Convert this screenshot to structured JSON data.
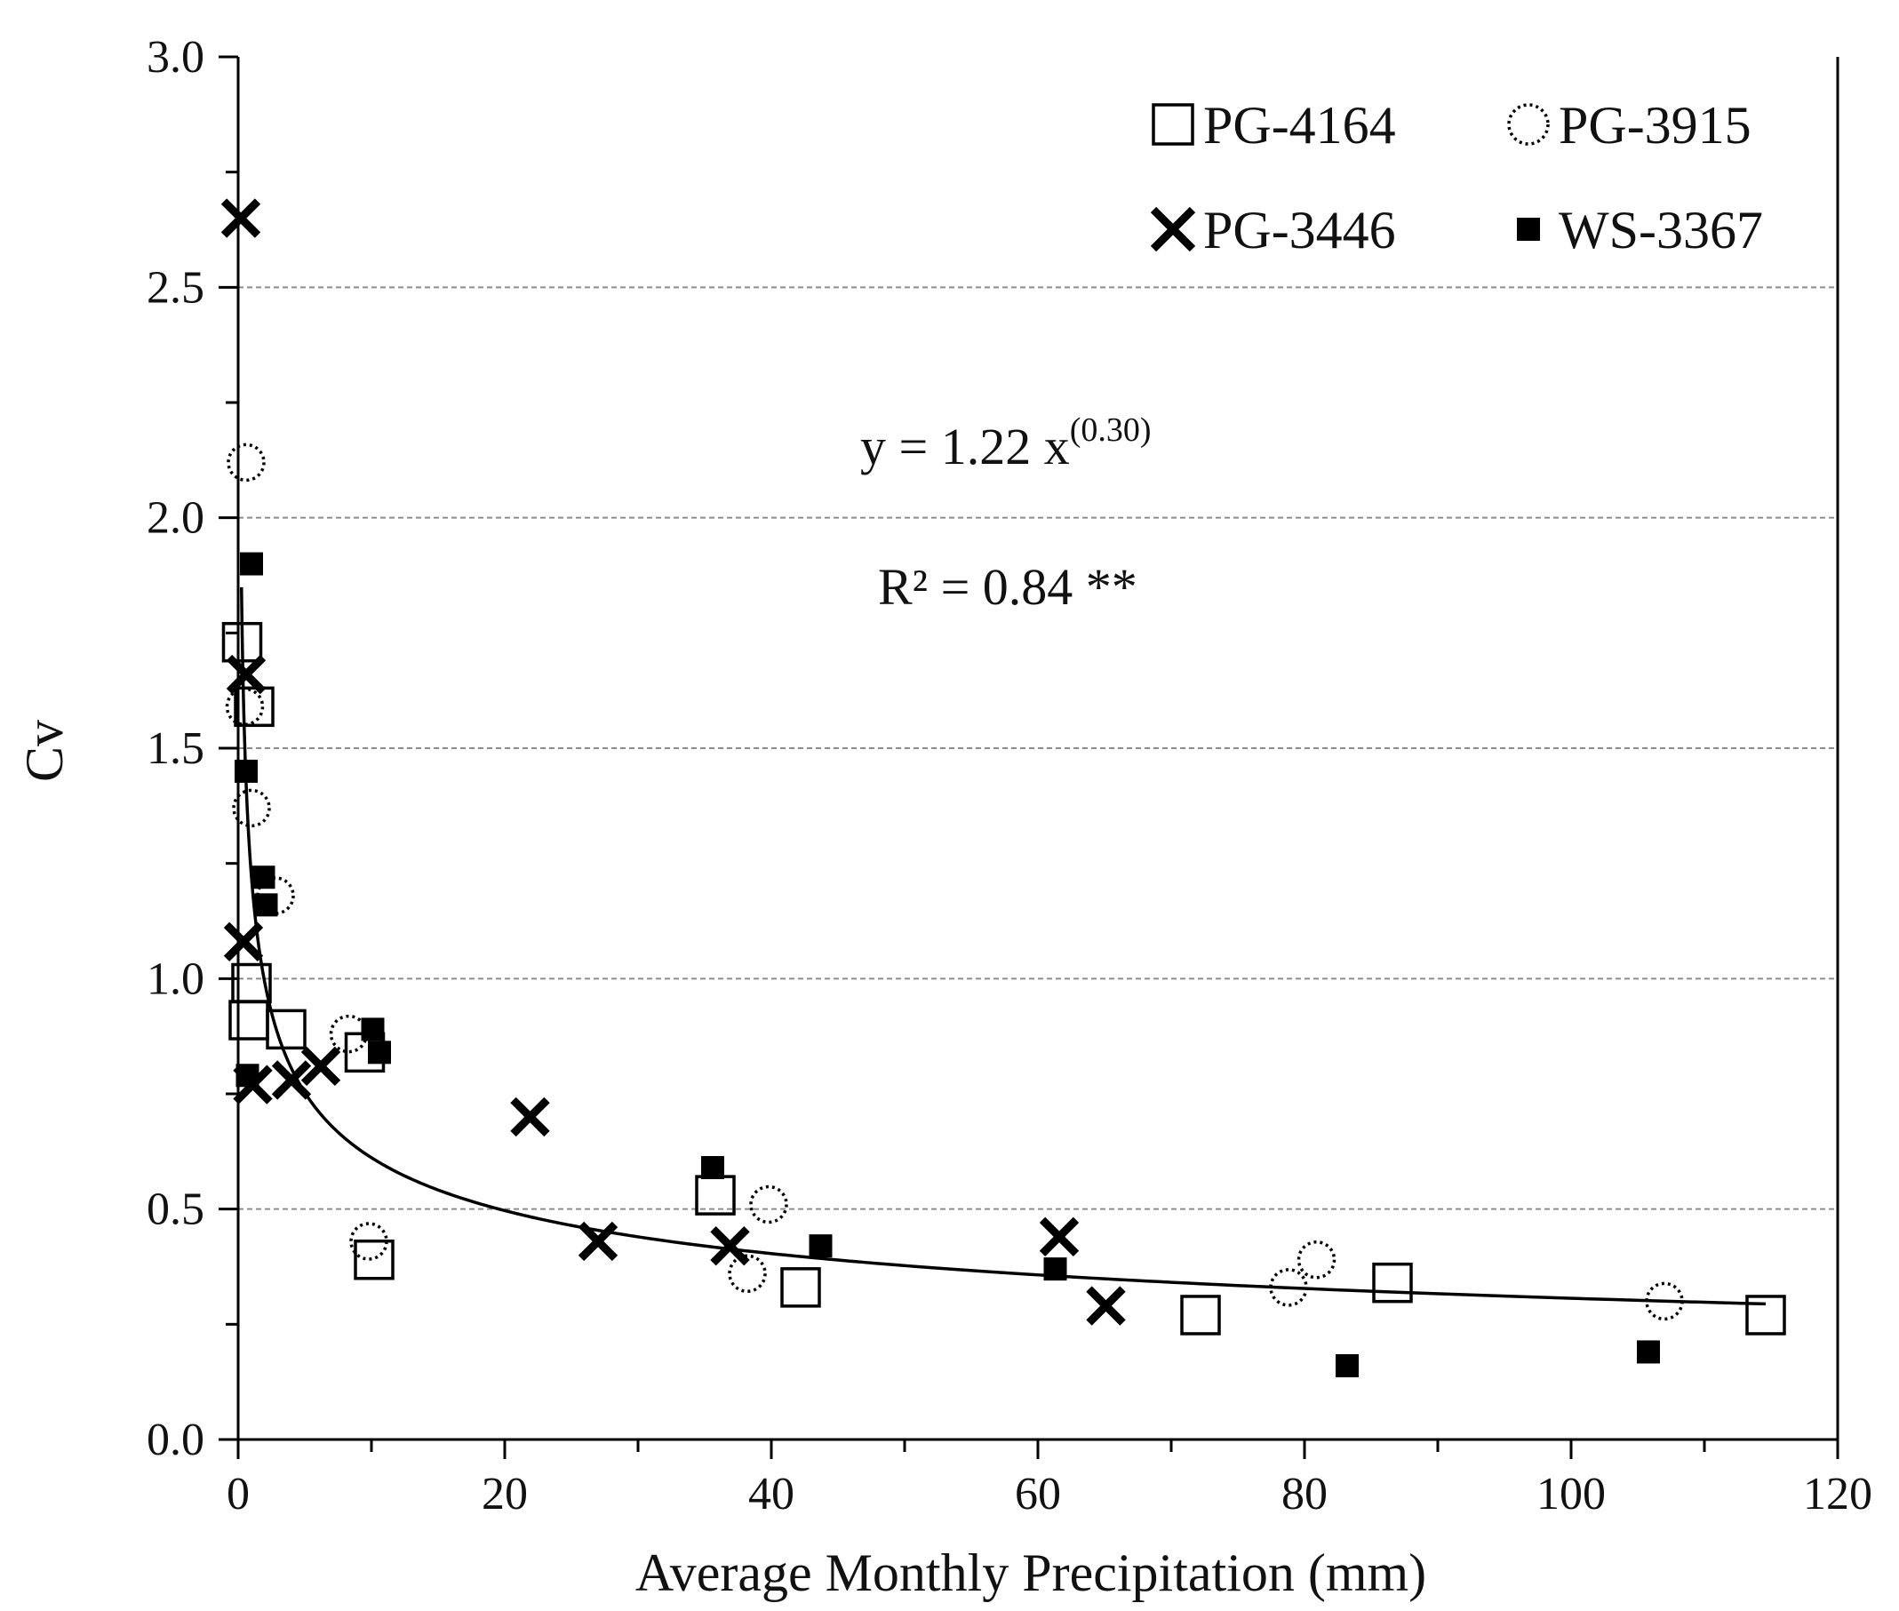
{
  "chart_data": {
    "type": "scatter",
    "title": "",
    "xlabel": "Average Monthly Precipitation (mm)",
    "ylabel": "Cv",
    "xlim": [
      0,
      120
    ],
    "ylim": [
      0,
      3.0
    ],
    "x_ticks": [
      "0",
      "20",
      "40",
      "60",
      "80",
      "100",
      "120"
    ],
    "y_ticks": [
      "0.0",
      "0.5",
      "1.0",
      "1.5",
      "2.0",
      "2.5",
      "3.0"
    ],
    "grid": "horizontal dashed",
    "legend_position": "top-right",
    "series": [
      {
        "name": "PG-4164",
        "marker": "open-square",
        "points": [
          [
            0.3,
            1.73
          ],
          [
            1.2,
            1.59
          ],
          [
            1.0,
            0.99
          ],
          [
            0.8,
            0.91
          ],
          [
            3.6,
            0.89
          ],
          [
            9.5,
            0.84
          ],
          [
            10.2,
            0.39
          ],
          [
            35.8,
            0.53
          ],
          [
            42.2,
            0.33
          ],
          [
            72.2,
            0.27
          ],
          [
            86.6,
            0.34
          ],
          [
            114.6,
            0.27
          ]
        ]
      },
      {
        "name": "PG-3915",
        "marker": "dotted-circle",
        "points": [
          [
            0.6,
            2.12
          ],
          [
            0.5,
            1.59
          ],
          [
            1.0,
            1.37
          ],
          [
            2.8,
            1.18
          ],
          [
            8.3,
            0.88
          ],
          [
            9.8,
            0.43
          ],
          [
            39.8,
            0.51
          ],
          [
            38.2,
            0.36
          ],
          [
            78.8,
            0.33
          ],
          [
            80.9,
            0.39
          ],
          [
            107.0,
            0.3
          ]
        ]
      },
      {
        "name": "PG-3446",
        "marker": "x",
        "points": [
          [
            0.2,
            2.65
          ],
          [
            0.6,
            1.66
          ],
          [
            0.4,
            1.08
          ],
          [
            1.1,
            0.77
          ],
          [
            4.0,
            0.78
          ],
          [
            6.2,
            0.81
          ],
          [
            21.9,
            0.7
          ],
          [
            27.0,
            0.43
          ],
          [
            36.9,
            0.42
          ],
          [
            61.6,
            0.44
          ],
          [
            65.1,
            0.29
          ]
        ]
      },
      {
        "name": "WS-3367",
        "marker": "filled-square",
        "points": [
          [
            1.0,
            1.9
          ],
          [
            0.6,
            1.45
          ],
          [
            1.9,
            1.22
          ],
          [
            2.1,
            1.16
          ],
          [
            0.7,
            0.79
          ],
          [
            10.1,
            0.89
          ],
          [
            10.6,
            0.84
          ],
          [
            35.6,
            0.59
          ],
          [
            43.7,
            0.42
          ],
          [
            61.3,
            0.37
          ],
          [
            83.2,
            0.16
          ],
          [
            105.8,
            0.19
          ]
        ]
      }
    ],
    "trendline": {
      "equation": "y = 1.22 x",
      "exponent": "(0.30)",
      "a": 1.22,
      "b": -0.3,
      "x_from": 0.25,
      "x_to": 114.6
    },
    "r_squared_label": "R² = 0.84 **",
    "colors": {
      "marker": "#000000",
      "grid": "#8c8c8c",
      "axis": "#000000"
    }
  }
}
